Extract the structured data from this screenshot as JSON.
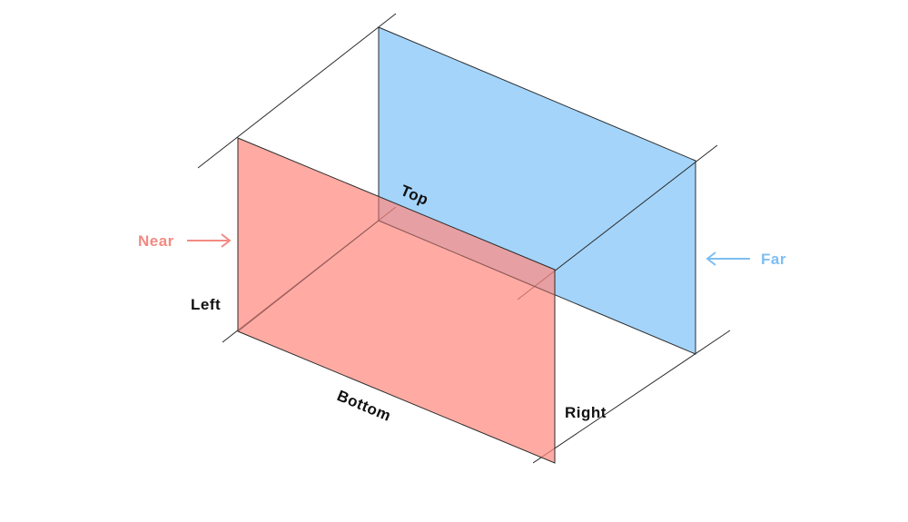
{
  "labels": {
    "near": "Near",
    "far": "Far",
    "top": "Top",
    "bottom": "Bottom",
    "left": "Left",
    "right": "Right"
  },
  "colors": {
    "near_plane": "#ff8a80",
    "far_plane": "#90caf9",
    "near_text": "#f28b82",
    "far_text": "#7dbef2",
    "line": "#2b2b2b",
    "text": "#111111"
  },
  "icons": {
    "near_arrow": "arrow-right-icon",
    "far_arrow": "arrow-left-icon"
  }
}
